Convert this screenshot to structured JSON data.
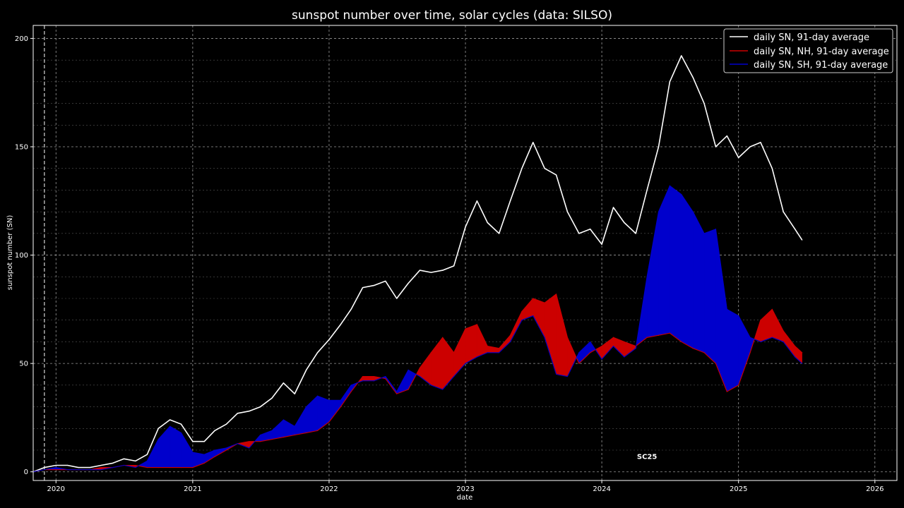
{
  "colors": {
    "background": "#000000",
    "total": "#ffffff",
    "nh": "#cc0000",
    "sh": "#0000cc",
    "grid": "#9a9a9a"
  },
  "chart_data": {
    "type": "line",
    "title": "sunspot number over time, solar cycles (data: SILSO)",
    "xlabel": "date",
    "ylabel": "sunspot number (SN)",
    "xlim": [
      "2019-11-01",
      "2026-03-01"
    ],
    "ylim": [
      -4,
      206
    ],
    "x_ticks": [
      "2020",
      "2021",
      "2022",
      "2023",
      "2024",
      "2025",
      "2026"
    ],
    "y_ticks": [
      0,
      50,
      100,
      150,
      200
    ],
    "grid": true,
    "legend_position": "top-right",
    "vline_date": "2019-12-01",
    "annotation": {
      "text": "SC25",
      "date": "2024-05-01",
      "value": 6
    },
    "series": [
      {
        "name": "daily SN, 91-day average",
        "color": "#ffffff",
        "x": [
          "2019-11-01",
          "2019-12-01",
          "2020-01-01",
          "2020-02-01",
          "2020-03-01",
          "2020-04-01",
          "2020-05-01",
          "2020-06-01",
          "2020-07-01",
          "2020-08-01",
          "2020-09-01",
          "2020-10-01",
          "2020-11-01",
          "2020-12-01",
          "2021-01-01",
          "2021-02-01",
          "2021-03-01",
          "2021-04-01",
          "2021-05-01",
          "2021-06-01",
          "2021-07-01",
          "2021-08-01",
          "2021-09-01",
          "2021-10-01",
          "2021-11-01",
          "2021-12-01",
          "2022-01-01",
          "2022-02-01",
          "2022-03-01",
          "2022-04-01",
          "2022-05-01",
          "2022-06-01",
          "2022-07-01",
          "2022-08-01",
          "2022-09-01",
          "2022-10-01",
          "2022-11-01",
          "2022-12-01",
          "2023-01-01",
          "2023-02-01",
          "2023-03-01",
          "2023-04-01",
          "2023-05-01",
          "2023-06-01",
          "2023-07-01",
          "2023-08-01",
          "2023-09-01",
          "2023-10-01",
          "2023-11-01",
          "2023-12-01",
          "2024-01-01",
          "2024-02-01",
          "2024-03-01",
          "2024-04-01",
          "2024-05-01",
          "2024-06-01",
          "2024-07-01",
          "2024-08-01",
          "2024-09-01",
          "2024-10-01",
          "2024-11-01",
          "2024-12-01",
          "2025-01-01",
          "2025-02-01",
          "2025-03-01",
          "2025-04-01",
          "2025-05-01",
          "2025-06-01",
          "2025-06-20"
        ],
        "values": [
          0,
          2,
          3,
          3,
          2,
          2,
          3,
          4,
          6,
          5,
          8,
          20,
          24,
          22,
          14,
          14,
          19,
          22,
          27,
          28,
          30,
          34,
          41,
          36,
          47,
          55,
          61,
          68,
          75,
          85,
          86,
          88,
          80,
          87,
          93,
          92,
          93,
          95,
          113,
          125,
          115,
          110,
          125,
          140,
          152,
          140,
          137,
          120,
          110,
          112,
          105,
          122,
          115,
          110,
          130,
          150,
          180,
          192,
          182,
          170,
          150,
          155,
          145,
          150,
          152,
          140,
          120,
          112,
          107
        ]
      },
      {
        "name": "daily SN, NH, 91-day average",
        "color": "#cc0000",
        "x": [
          "2019-11-01",
          "2019-12-01",
          "2020-01-01",
          "2020-02-01",
          "2020-03-01",
          "2020-04-01",
          "2020-05-01",
          "2020-06-01",
          "2020-07-01",
          "2020-08-01",
          "2020-09-01",
          "2020-10-01",
          "2020-11-01",
          "2020-12-01",
          "2021-01-01",
          "2021-02-01",
          "2021-03-01",
          "2021-04-01",
          "2021-05-01",
          "2021-06-01",
          "2021-07-01",
          "2021-08-01",
          "2021-09-01",
          "2021-10-01",
          "2021-11-01",
          "2021-12-01",
          "2022-01-01",
          "2022-02-01",
          "2022-03-01",
          "2022-04-01",
          "2022-05-01",
          "2022-06-01",
          "2022-07-01",
          "2022-08-01",
          "2022-09-01",
          "2022-10-01",
          "2022-11-01",
          "2022-12-01",
          "2023-01-01",
          "2023-02-01",
          "2023-03-01",
          "2023-04-01",
          "2023-05-01",
          "2023-06-01",
          "2023-07-01",
          "2023-08-01",
          "2023-09-01",
          "2023-10-01",
          "2023-11-01",
          "2023-12-01",
          "2024-01-01",
          "2024-02-01",
          "2024-03-01",
          "2024-04-01",
          "2024-05-01",
          "2024-06-01",
          "2024-07-01",
          "2024-08-01",
          "2024-09-01",
          "2024-10-01",
          "2024-11-01",
          "2024-12-01",
          "2025-01-01",
          "2025-02-01",
          "2025-03-01",
          "2025-04-01",
          "2025-05-01",
          "2025-06-01",
          "2025-06-20"
        ],
        "values": [
          0,
          1,
          1,
          1,
          1,
          1,
          2,
          2,
          3,
          3,
          2,
          2,
          2,
          2,
          2,
          4,
          7,
          10,
          13,
          14,
          14,
          15,
          16,
          17,
          18,
          19,
          23,
          30,
          37,
          44,
          44,
          43,
          36,
          38,
          48,
          55,
          62,
          55,
          66,
          68,
          58,
          57,
          63,
          74,
          80,
          78,
          82,
          62,
          50,
          55,
          58,
          62,
          60,
          58,
          62,
          63,
          64,
          60,
          57,
          55,
          50,
          37,
          40,
          55,
          70,
          75,
          65,
          58,
          55
        ]
      },
      {
        "name": "daily SN, SH, 91-day average",
        "color": "#0000cc",
        "x": [
          "2019-11-01",
          "2019-12-01",
          "2020-01-01",
          "2020-02-01",
          "2020-03-01",
          "2020-04-01",
          "2020-05-01",
          "2020-06-01",
          "2020-07-01",
          "2020-08-01",
          "2020-09-01",
          "2020-10-01",
          "2020-11-01",
          "2020-12-01",
          "2021-01-01",
          "2021-02-01",
          "2021-03-01",
          "2021-04-01",
          "2021-05-01",
          "2021-06-01",
          "2021-07-01",
          "2021-08-01",
          "2021-09-01",
          "2021-10-01",
          "2021-11-01",
          "2021-12-01",
          "2022-01-01",
          "2022-02-01",
          "2022-03-01",
          "2022-04-01",
          "2022-05-01",
          "2022-06-01",
          "2022-07-01",
          "2022-08-01",
          "2022-09-01",
          "2022-10-01",
          "2022-11-01",
          "2022-12-01",
          "2023-01-01",
          "2023-02-01",
          "2023-03-01",
          "2023-04-01",
          "2023-05-01",
          "2023-06-01",
          "2023-07-01",
          "2023-08-01",
          "2023-09-01",
          "2023-10-01",
          "2023-11-01",
          "2023-12-01",
          "2024-01-01",
          "2024-02-01",
          "2024-03-01",
          "2024-04-01",
          "2024-05-01",
          "2024-06-01",
          "2024-07-01",
          "2024-08-01",
          "2024-09-01",
          "2024-10-01",
          "2024-11-01",
          "2024-12-01",
          "2025-01-01",
          "2025-02-01",
          "2025-03-01",
          "2025-04-01",
          "2025-05-01",
          "2025-06-01",
          "2025-06-20"
        ],
        "values": [
          0,
          1,
          2,
          1,
          1,
          1,
          1,
          2,
          3,
          2,
          5,
          15,
          21,
          18,
          9,
          8,
          10,
          11,
          13,
          11,
          17,
          19,
          24,
          21,
          30,
          35,
          33,
          33,
          40,
          42,
          42,
          44,
          37,
          47,
          44,
          40,
          38,
          44,
          50,
          53,
          55,
          55,
          60,
          70,
          72,
          62,
          45,
          44,
          55,
          60,
          52,
          58,
          53,
          57,
          90,
          120,
          132,
          128,
          120,
          110,
          112,
          75,
          72,
          62,
          60,
          62,
          60,
          53,
          50
        ]
      }
    ]
  }
}
